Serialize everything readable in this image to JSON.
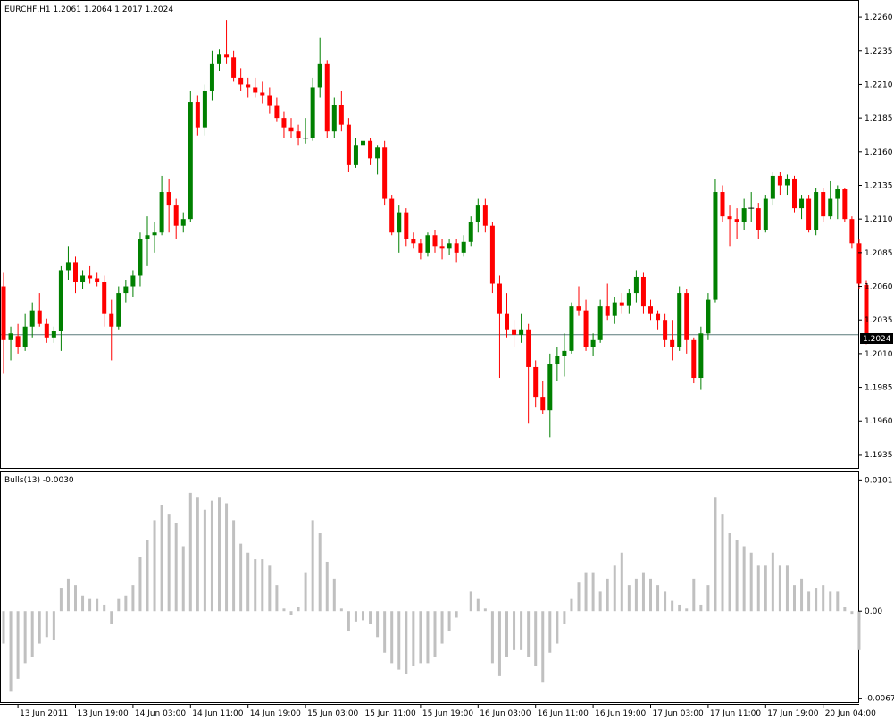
{
  "chart_data": [
    {
      "type": "candlestick",
      "title": "EURCHF,H1  1.2061 1.2064 1.2017 1.2024",
      "current_price": 1.2024,
      "current_price_label": "1.2024",
      "ylim": [
        1.1925,
        1.2272
      ],
      "y_ticks": [
        "1.2260",
        "1.2235",
        "1.2210",
        "1.2185",
        "1.2160",
        "1.2135",
        "1.2110",
        "1.2085",
        "1.2060",
        "1.2035",
        "1.2010",
        "1.1985",
        "1.1960",
        "1.1935"
      ],
      "x_ticks": [
        {
          "label": "13 Jun 2011",
          "index": 2
        },
        {
          "label": "13 Jun 19:00",
          "index": 10
        },
        {
          "label": "14 Jun 03:00",
          "index": 18
        },
        {
          "label": "14 Jun 11:00",
          "index": 26
        },
        {
          "label": "14 Jun 19:00",
          "index": 34
        },
        {
          "label": "15 Jun 03:00",
          "index": 42
        },
        {
          "label": "15 Jun 11:00",
          "index": 50
        },
        {
          "label": "15 Jun 19:00",
          "index": 58
        },
        {
          "label": "16 Jun 03:00",
          "index": 66
        },
        {
          "label": "16 Jun 11:00",
          "index": 74
        },
        {
          "label": "16 Jun 19:00",
          "index": 82
        },
        {
          "label": "17 Jun 03:00",
          "index": 90
        },
        {
          "label": "17 Jun 11:00",
          "index": 98
        },
        {
          "label": "17 Jun 19:00",
          "index": 106
        },
        {
          "label": "20 Jun 04:00",
          "index": 114
        }
      ],
      "colors": {
        "bull": "#008000",
        "bear": "#ff0000",
        "price_line": "#5a7a7a"
      },
      "ohlc": [
        [
          1.206,
          1.207,
          1.1995,
          1.202
        ],
        [
          1.202,
          1.203,
          1.2005,
          1.2025
        ],
        [
          1.2023,
          1.2032,
          1.201,
          1.2015
        ],
        [
          1.2015,
          1.204,
          1.2012,
          1.203
        ],
        [
          1.203,
          1.2048,
          1.2022,
          1.2042
        ],
        [
          1.2042,
          1.2055,
          1.203,
          1.2032
        ],
        [
          1.2032,
          1.2036,
          1.2018,
          1.2022
        ],
        [
          1.2022,
          1.203,
          1.2018,
          1.2027
        ],
        [
          1.2027,
          1.2075,
          1.2012,
          1.2072
        ],
        [
          1.2072,
          1.209,
          1.2065,
          1.2078
        ],
        [
          1.2078,
          1.2082,
          1.2055,
          1.2063
        ],
        [
          1.2063,
          1.2072,
          1.2058,
          1.2068
        ],
        [
          1.2068,
          1.2075,
          1.2062,
          1.2066
        ],
        [
          1.2066,
          1.207,
          1.206,
          1.2063
        ],
        [
          1.2063,
          1.2068,
          1.203,
          1.204
        ],
        [
          1.204,
          1.205,
          1.2005,
          1.203
        ],
        [
          1.203,
          1.206,
          1.2028,
          1.2055
        ],
        [
          1.2055,
          1.2065,
          1.2048,
          1.206
        ],
        [
          1.206,
          1.2072,
          1.2052,
          1.2068
        ],
        [
          1.2068,
          1.21,
          1.206,
          1.2095
        ],
        [
          1.2095,
          1.2112,
          1.2075,
          1.2098
        ],
        [
          1.2098,
          1.2108,
          1.2085,
          1.21
        ],
        [
          1.21,
          1.2142,
          1.2098,
          1.213
        ],
        [
          1.213,
          1.214,
          1.21,
          1.212
        ],
        [
          1.212,
          1.2125,
          1.2095,
          1.2105
        ],
        [
          1.2105,
          1.2115,
          1.21,
          1.211
        ],
        [
          1.211,
          1.2205,
          1.2108,
          1.2197
        ],
        [
          1.2197,
          1.2202,
          1.2172,
          1.2178
        ],
        [
          1.2178,
          1.221,
          1.2172,
          1.2205
        ],
        [
          1.2205,
          1.2235,
          1.2198,
          1.2225
        ],
        [
          1.2225,
          1.2236,
          1.222,
          1.2232
        ],
        [
          1.2232,
          1.2258,
          1.2225,
          1.223
        ],
        [
          1.223,
          1.2235,
          1.2212,
          1.2215
        ],
        [
          1.2215,
          1.2222,
          1.2205,
          1.221
        ],
        [
          1.221,
          1.2215,
          1.22,
          1.2208
        ],
        [
          1.2208,
          1.2215,
          1.22,
          1.2204
        ],
        [
          1.2204,
          1.2212,
          1.2196,
          1.2202
        ],
        [
          1.2202,
          1.2208,
          1.2188,
          1.2194
        ],
        [
          1.2194,
          1.22,
          1.2182,
          1.2185
        ],
        [
          1.2185,
          1.219,
          1.217,
          1.2178
        ],
        [
          1.2178,
          1.2185,
          1.217,
          1.2175
        ],
        [
          1.2175,
          1.218,
          1.2165,
          1.217
        ],
        [
          1.217,
          1.2185,
          1.2166,
          1.217
        ],
        [
          1.217,
          1.2215,
          1.2168,
          1.2208
        ],
        [
          1.2208,
          1.2245,
          1.22,
          1.2225
        ],
        [
          1.2225,
          1.2228,
          1.217,
          1.2175
        ],
        [
          1.2175,
          1.22,
          1.217,
          1.2195
        ],
        [
          1.2195,
          1.2205,
          1.2175,
          1.218
        ],
        [
          1.218,
          1.2185,
          1.2145,
          1.215
        ],
        [
          1.215,
          1.217,
          1.2148,
          1.2165
        ],
        [
          1.2165,
          1.2172,
          1.216,
          1.2168
        ],
        [
          1.2168,
          1.217,
          1.215,
          1.2155
        ],
        [
          1.2155,
          1.2165,
          1.2143,
          1.2163
        ],
        [
          1.2163,
          1.2168,
          1.212,
          1.2125
        ],
        [
          1.2125,
          1.2128,
          1.2098,
          1.21
        ],
        [
          1.21,
          1.212,
          1.2085,
          1.2115
        ],
        [
          1.2115,
          1.2118,
          1.209,
          1.2095
        ],
        [
          1.2095,
          1.21,
          1.2088,
          1.2092
        ],
        [
          1.2092,
          1.2095,
          1.208,
          1.2085
        ],
        [
          1.2085,
          1.21,
          1.2082,
          1.2098
        ],
        [
          1.2098,
          1.2102,
          1.2085,
          1.209
        ],
        [
          1.209,
          1.2095,
          1.208,
          1.2088
        ],
        [
          1.2088,
          1.2095,
          1.2083,
          1.2092
        ],
        [
          1.2092,
          1.2095,
          1.2078,
          1.2085
        ],
        [
          1.2085,
          1.2098,
          1.2082,
          1.2093
        ],
        [
          1.2093,
          1.2112,
          1.209,
          1.2108
        ],
        [
          1.2108,
          1.2125,
          1.21,
          1.212
        ],
        [
          1.212,
          1.2125,
          1.21,
          1.2105
        ],
        [
          1.2105,
          1.2108,
          1.2055,
          1.2062
        ],
        [
          1.2062,
          1.2068,
          1.1992,
          1.204
        ],
        [
          1.204,
          1.2055,
          1.2022,
          1.2028
        ],
        [
          1.2028,
          1.2035,
          1.2015,
          1.2024
        ],
        [
          1.2024,
          1.204,
          1.2018,
          1.2028
        ],
        [
          1.2028,
          1.2032,
          1.1958,
          1.2
        ],
        [
          1.2,
          1.2005,
          1.197,
          1.1978
        ],
        [
          1.1978,
          1.199,
          1.1965,
          1.1968
        ],
        [
          1.1968,
          1.201,
          1.1948,
          1.2002
        ],
        [
          1.2002,
          1.2015,
          1.199,
          1.2008
        ],
        [
          1.2008,
          1.2025,
          1.1993,
          1.2012
        ],
        [
          1.2012,
          1.2048,
          1.201,
          1.2045
        ],
        [
          1.2045,
          1.206,
          1.2038,
          1.2042
        ],
        [
          1.2042,
          1.205,
          1.2012,
          1.2015
        ],
        [
          1.2015,
          1.2025,
          1.2008,
          1.202
        ],
        [
          1.202,
          1.205,
          1.2018,
          1.2045
        ],
        [
          1.2045,
          1.2062,
          1.2035,
          1.2038
        ],
        [
          1.2038,
          1.2052,
          1.2032,
          1.2048
        ],
        [
          1.2048,
          1.2055,
          1.204,
          1.2046
        ],
        [
          1.2046,
          1.2058,
          1.204,
          1.2055
        ],
        [
          1.2055,
          1.2072,
          1.2048,
          1.2067
        ],
        [
          1.2067,
          1.207,
          1.204,
          1.2045
        ],
        [
          1.2045,
          1.205,
          1.2035,
          1.204
        ],
        [
          1.204,
          1.2042,
          1.2028,
          1.2035
        ],
        [
          1.2035,
          1.204,
          1.2015,
          1.202
        ],
        [
          1.202,
          1.2035,
          1.2005,
          1.2015
        ],
        [
          1.2015,
          1.206,
          1.2012,
          1.2055
        ],
        [
          1.2055,
          1.2058,
          1.201,
          1.202
        ],
        [
          1.202,
          1.2022,
          1.1988,
          1.1992
        ],
        [
          1.1992,
          1.203,
          1.1983,
          1.2025
        ],
        [
          1.2025,
          1.2055,
          1.202,
          1.205
        ],
        [
          1.205,
          1.214,
          1.2048,
          1.213
        ],
        [
          1.213,
          1.2135,
          1.2108,
          1.2112
        ],
        [
          1.2112,
          1.212,
          1.209,
          1.211
        ],
        [
          1.211,
          1.2118,
          1.2095,
          1.2108
        ],
        [
          1.2108,
          1.2125,
          1.2102,
          1.2118
        ],
        [
          1.2118,
          1.213,
          1.2108,
          1.2118
        ],
        [
          1.2118,
          1.2122,
          1.2095,
          1.2102
        ],
        [
          1.2102,
          1.2128,
          1.21,
          1.2125
        ],
        [
          1.2125,
          1.2145,
          1.212,
          1.2142
        ],
        [
          1.2142,
          1.2145,
          1.2128,
          1.2135
        ],
        [
          1.2135,
          1.2143,
          1.2128,
          1.214
        ],
        [
          1.214,
          1.2142,
          1.2115,
          1.2118
        ],
        [
          1.2118,
          1.2128,
          1.211,
          1.2125
        ],
        [
          1.2125,
          1.2128,
          1.21,
          1.2102
        ],
        [
          1.2102,
          1.2133,
          1.2098,
          1.213
        ],
        [
          1.213,
          1.2133,
          1.2108,
          1.2112
        ],
        [
          1.2112,
          1.2138,
          1.211,
          1.2125
        ],
        [
          1.2125,
          1.2135,
          1.211,
          1.2132
        ],
        [
          1.2132,
          1.2133,
          1.2108,
          1.211
        ],
        [
          1.211,
          1.2112,
          1.2088,
          1.2092
        ],
        [
          1.2092,
          1.2095,
          1.2058,
          1.2062
        ],
        [
          1.2061,
          1.2064,
          1.2017,
          1.2024
        ]
      ]
    },
    {
      "type": "bar",
      "title": "Bulls(13) -0.0030",
      "ylim": [
        -0.007,
        0.0104
      ],
      "y_ticks": [
        "0.0101",
        "0.00",
        "-0.0067"
      ],
      "bar_color": "#c0c0c0",
      "values": [
        -0.0025,
        -0.0062,
        -0.0052,
        -0.004,
        -0.0035,
        -0.0025,
        -0.002,
        -0.0022,
        0.0018,
        0.0025,
        0.002,
        0.0012,
        0.001,
        0.001,
        0.0005,
        -0.001,
        0.001,
        0.0012,
        0.002,
        0.0042,
        0.0055,
        0.007,
        0.0082,
        0.0075,
        0.0068,
        0.005,
        0.0091,
        0.0088,
        0.0078,
        0.0085,
        0.0088,
        0.0083,
        0.007,
        0.0052,
        0.0045,
        0.004,
        0.004,
        0.0035,
        0.002,
        0.0002,
        -0.0003,
        0.0003,
        0.003,
        0.007,
        0.006,
        0.0038,
        0.0025,
        0.0002,
        -0.0015,
        -0.0008,
        -0.0007,
        -0.001,
        -0.002,
        -0.0032,
        -0.004,
        -0.0045,
        -0.0048,
        -0.0042,
        -0.004,
        -0.004,
        -0.0035,
        -0.0025,
        -0.0015,
        -0.0005,
        0.0,
        0.0015,
        0.001,
        0.0002,
        -0.004,
        -0.005,
        -0.0035,
        -0.003,
        -0.003,
        -0.0035,
        -0.0042,
        -0.0055,
        -0.0032,
        -0.0025,
        -0.001,
        0.001,
        0.0022,
        0.003,
        0.003,
        0.0015,
        0.0025,
        0.0035,
        0.0045,
        0.002,
        0.0025,
        0.003,
        0.0025,
        0.002,
        0.0015,
        0.0008,
        0.0005,
        0.0002,
        0.0025,
        0.0005,
        0.002,
        0.0088,
        0.0075,
        0.006,
        0.0055,
        0.005,
        0.0045,
        0.0035,
        0.0035,
        0.0045,
        0.0035,
        0.0035,
        0.002,
        0.0025,
        0.0015,
        0.0018,
        0.002,
        0.0015,
        0.0015,
        0.0003,
        -0.0002,
        -0.003
      ]
    }
  ]
}
